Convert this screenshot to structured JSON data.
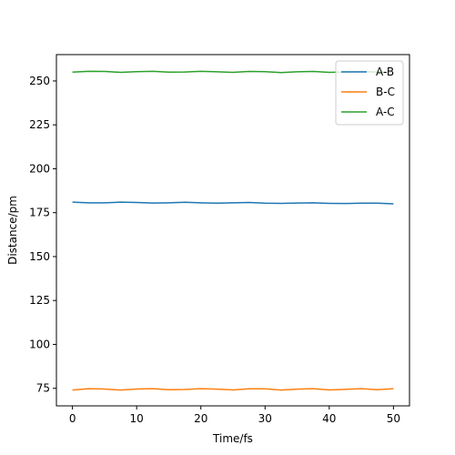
{
  "chart_data": {
    "type": "line",
    "title": "",
    "xlabel": "Time/fs",
    "ylabel": "Distance/pm",
    "xlim": [
      -2.5,
      52.5
    ],
    "ylim": [
      65,
      265
    ],
    "xticks": [
      0,
      10,
      20,
      30,
      40,
      50
    ],
    "yticks": [
      75,
      100,
      125,
      150,
      175,
      200,
      225,
      250
    ],
    "grid": false,
    "legend_position": "top-right",
    "series": [
      {
        "name": "A-B",
        "color": "#1f77b4",
        "x": [
          0,
          2.5,
          5,
          7.5,
          10,
          12.5,
          15,
          17.5,
          20,
          22.5,
          25,
          27.5,
          30,
          32.5,
          35,
          37.5,
          40,
          42.5,
          45,
          47.5,
          50
        ],
        "y": [
          181.0,
          180.6,
          180.6,
          181.0,
          180.8,
          180.5,
          180.6,
          180.9,
          180.6,
          180.4,
          180.6,
          180.8,
          180.4,
          180.3,
          180.5,
          180.6,
          180.3,
          180.2,
          180.4,
          180.4,
          180.0
        ]
      },
      {
        "name": "B-C",
        "color": "#ff7f0e",
        "x": [
          0,
          2.5,
          5,
          7.5,
          10,
          12.5,
          15,
          17.5,
          20,
          22.5,
          25,
          27.5,
          30,
          32.5,
          35,
          37.5,
          40,
          42.5,
          45,
          47.5,
          50
        ],
        "y": [
          74.0,
          74.8,
          74.6,
          74.0,
          74.6,
          74.8,
          74.2,
          74.3,
          74.8,
          74.5,
          74.1,
          74.7,
          74.7,
          74.0,
          74.5,
          74.8,
          74.1,
          74.4,
          74.8,
          74.2,
          74.8
        ]
      },
      {
        "name": "A-C",
        "color": "#2ca02c",
        "x": [
          0,
          2.5,
          5,
          7.5,
          10,
          12.5,
          15,
          17.5,
          20,
          22.5,
          25,
          27.5,
          30,
          32.5,
          35,
          37.5,
          40,
          42.5,
          45,
          47.5,
          50
        ],
        "y": [
          255.0,
          255.5,
          255.4,
          254.9,
          255.3,
          255.5,
          255.0,
          255.1,
          255.5,
          255.2,
          254.9,
          255.4,
          255.3,
          254.8,
          255.2,
          255.4,
          254.9,
          255.1,
          255.4,
          255.0,
          254.9
        ]
      }
    ]
  }
}
